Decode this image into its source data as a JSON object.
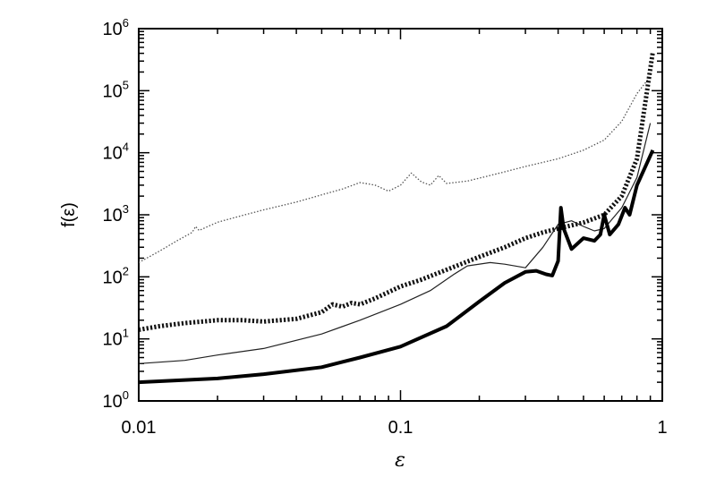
{
  "chart_data": {
    "type": "line",
    "title": "",
    "xlabel": "ε",
    "ylabel": "f(ε)",
    "xscale": "log",
    "yscale": "log",
    "xlim": [
      0.01,
      1
    ],
    "ylim": [
      1,
      1000000
    ],
    "grid": false,
    "legend": "none",
    "x_ticks": [
      {
        "value": 0.01,
        "label": "0.01"
      },
      {
        "value": 0.1,
        "label": "0.1"
      },
      {
        "value": 1,
        "label": "1"
      }
    ],
    "y_ticks": [
      {
        "value": 1,
        "base": "10",
        "exp": "0"
      },
      {
        "value": 10,
        "base": "10",
        "exp": "1"
      },
      {
        "value": 100,
        "base": "10",
        "exp": "2"
      },
      {
        "value": 1000,
        "base": "10",
        "exp": "3"
      },
      {
        "value": 10000,
        "base": "10",
        "exp": "4"
      },
      {
        "value": 100000,
        "base": "10",
        "exp": "5"
      },
      {
        "value": 1000000,
        "base": "10",
        "exp": "6"
      }
    ],
    "series": [
      {
        "style": "dotted-thin",
        "points": [
          [
            0.01,
            170
          ],
          [
            0.012,
            260
          ],
          [
            0.014,
            380
          ],
          [
            0.016,
            520
          ],
          [
            0.0165,
            650
          ],
          [
            0.017,
            560
          ],
          [
            0.02,
            760
          ],
          [
            0.025,
            980
          ],
          [
            0.03,
            1200
          ],
          [
            0.04,
            1600
          ],
          [
            0.05,
            2100
          ],
          [
            0.06,
            2600
          ],
          [
            0.07,
            3300
          ],
          [
            0.08,
            3000
          ],
          [
            0.09,
            2400
          ],
          [
            0.1,
            3000
          ],
          [
            0.11,
            4700
          ],
          [
            0.12,
            3400
          ],
          [
            0.13,
            3000
          ],
          [
            0.14,
            4300
          ],
          [
            0.15,
            3200
          ],
          [
            0.18,
            3500
          ],
          [
            0.22,
            4300
          ],
          [
            0.3,
            6000
          ],
          [
            0.4,
            8000
          ],
          [
            0.5,
            11000
          ],
          [
            0.6,
            16000
          ],
          [
            0.7,
            32000
          ],
          [
            0.8,
            90000
          ],
          [
            0.88,
            150000
          ]
        ]
      },
      {
        "style": "dotted-thick",
        "points": [
          [
            0.01,
            14
          ],
          [
            0.012,
            16
          ],
          [
            0.015,
            18
          ],
          [
            0.02,
            20
          ],
          [
            0.025,
            20
          ],
          [
            0.03,
            19
          ],
          [
            0.04,
            21
          ],
          [
            0.05,
            27
          ],
          [
            0.055,
            36
          ],
          [
            0.06,
            33
          ],
          [
            0.065,
            38
          ],
          [
            0.07,
            36
          ],
          [
            0.08,
            45
          ],
          [
            0.1,
            70
          ],
          [
            0.12,
            90
          ],
          [
            0.15,
            130
          ],
          [
            0.2,
            210
          ],
          [
            0.25,
            300
          ],
          [
            0.3,
            420
          ],
          [
            0.35,
            520
          ],
          [
            0.4,
            600
          ],
          [
            0.5,
            750
          ],
          [
            0.6,
            1000
          ],
          [
            0.7,
            2000
          ],
          [
            0.8,
            8000
          ],
          [
            0.92,
            420000
          ]
        ]
      },
      {
        "style": "solid-thin",
        "points": [
          [
            0.01,
            4
          ],
          [
            0.015,
            4.5
          ],
          [
            0.02,
            5.5
          ],
          [
            0.03,
            7
          ],
          [
            0.05,
            12
          ],
          [
            0.07,
            20
          ],
          [
            0.1,
            36
          ],
          [
            0.13,
            60
          ],
          [
            0.16,
            110
          ],
          [
            0.18,
            150
          ],
          [
            0.22,
            170
          ],
          [
            0.25,
            160
          ],
          [
            0.3,
            140
          ],
          [
            0.35,
            300
          ],
          [
            0.4,
            700
          ],
          [
            0.45,
            800
          ],
          [
            0.5,
            650
          ],
          [
            0.55,
            550
          ],
          [
            0.6,
            600
          ],
          [
            0.7,
            1300
          ],
          [
            0.8,
            4000
          ],
          [
            0.9,
            30000
          ]
        ]
      },
      {
        "style": "solid-thick",
        "points": [
          [
            0.01,
            2.0
          ],
          [
            0.02,
            2.3
          ],
          [
            0.03,
            2.7
          ],
          [
            0.05,
            3.5
          ],
          [
            0.07,
            5
          ],
          [
            0.1,
            7.5
          ],
          [
            0.15,
            16
          ],
          [
            0.2,
            40
          ],
          [
            0.25,
            80
          ],
          [
            0.3,
            120
          ],
          [
            0.33,
            125
          ],
          [
            0.36,
            110
          ],
          [
            0.38,
            105
          ],
          [
            0.4,
            180
          ],
          [
            0.41,
            1300
          ],
          [
            0.42,
            600
          ],
          [
            0.45,
            280
          ],
          [
            0.5,
            420
          ],
          [
            0.55,
            380
          ],
          [
            0.58,
            480
          ],
          [
            0.6,
            1000
          ],
          [
            0.63,
            480
          ],
          [
            0.68,
            700
          ],
          [
            0.72,
            1300
          ],
          [
            0.75,
            1000
          ],
          [
            0.8,
            3000
          ],
          [
            0.92,
            11000
          ]
        ]
      }
    ]
  }
}
